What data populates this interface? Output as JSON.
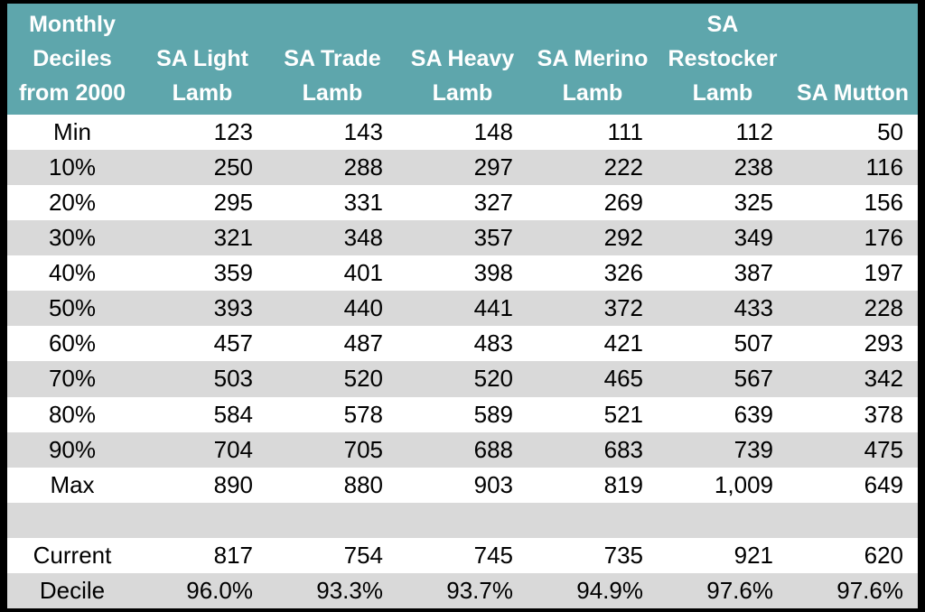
{
  "colors": {
    "header_bg": "#5EA6AC",
    "header_text": "#FFFFFF",
    "stripe_row_bg": "#D9D9D9",
    "plain_row_bg": "#FFFFFF",
    "frame_border": "#000000",
    "body_text": "#000000"
  },
  "chart_data": {
    "type": "table",
    "corner_header": "Monthly\nDeciles\nfrom 2000",
    "columns": [
      "SA Light\nLamb",
      "SA Trade\nLamb",
      "SA Heavy\nLamb",
      "SA Merino\nLamb",
      "SA\nRestocker\nLamb",
      "SA Mutton"
    ],
    "rows": [
      {
        "label": "Min",
        "values": [
          "123",
          "143",
          "148",
          "111",
          "112",
          "50"
        ]
      },
      {
        "label": "10%",
        "values": [
          "250",
          "288",
          "297",
          "222",
          "238",
          "116"
        ]
      },
      {
        "label": "20%",
        "values": [
          "295",
          "331",
          "327",
          "269",
          "325",
          "156"
        ]
      },
      {
        "label": "30%",
        "values": [
          "321",
          "348",
          "357",
          "292",
          "349",
          "176"
        ]
      },
      {
        "label": "40%",
        "values": [
          "359",
          "401",
          "398",
          "326",
          "387",
          "197"
        ]
      },
      {
        "label": "50%",
        "values": [
          "393",
          "440",
          "441",
          "372",
          "433",
          "228"
        ]
      },
      {
        "label": "60%",
        "values": [
          "457",
          "487",
          "483",
          "421",
          "507",
          "293"
        ]
      },
      {
        "label": "70%",
        "values": [
          "503",
          "520",
          "520",
          "465",
          "567",
          "342"
        ]
      },
      {
        "label": "80%",
        "values": [
          "584",
          "578",
          "589",
          "521",
          "639",
          "378"
        ]
      },
      {
        "label": "90%",
        "values": [
          "704",
          "705",
          "688",
          "683",
          "739",
          "475"
        ]
      },
      {
        "label": "Max",
        "values": [
          "890",
          "880",
          "903",
          "819",
          "1,009",
          "649"
        ]
      },
      {
        "label": "",
        "values": [
          "",
          "",
          "",
          "",
          "",
          ""
        ]
      },
      {
        "label": "Current",
        "values": [
          "817",
          "754",
          "745",
          "735",
          "921",
          "620"
        ]
      },
      {
        "label": "Decile",
        "values": [
          "96.0%",
          "93.3%",
          "93.7%",
          "94.9%",
          "97.6%",
          "97.6%"
        ]
      }
    ]
  }
}
